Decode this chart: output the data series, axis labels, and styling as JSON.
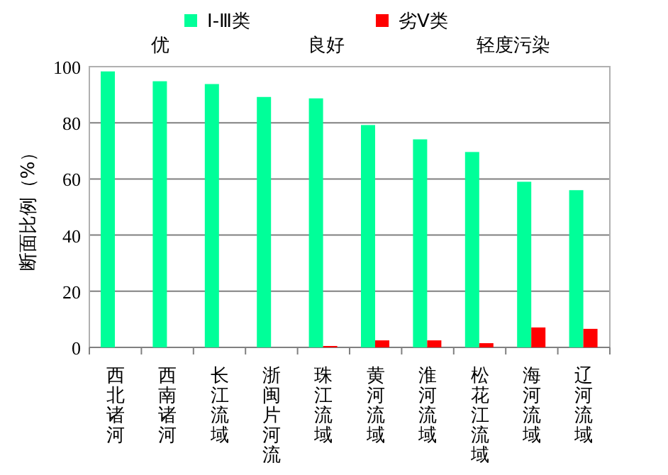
{
  "chart_data": {
    "type": "bar",
    "ylabel": "断面比例（%）",
    "categories": [
      "西北诸河",
      "西南诸河",
      "长江流域",
      "浙闽片河流",
      "珠江流域",
      "黄河流域",
      "淮河流域",
      "松花江流域",
      "海河流域",
      "辽河流域"
    ],
    "series": [
      {
        "name": "Ⅰ-Ⅲ类",
        "color": "#00ff99",
        "values": [
          98.3,
          94.8,
          93.8,
          89.2,
          88.7,
          79.2,
          74.1,
          69.6,
          59.0,
          56.0
        ]
      },
      {
        "name": "劣Ⅴ类",
        "color": "#ff0000",
        "values": [
          0,
          0,
          0,
          0,
          0.5,
          2.5,
          2.5,
          1.5,
          7.1,
          6.6
        ]
      }
    ],
    "ylim": [
      0,
      100
    ],
    "yticks": [
      0,
      20,
      40,
      60,
      80,
      100
    ],
    "grid": "y",
    "legend": "top",
    "annotations": [
      "优",
      "良好",
      "轻度污染"
    ]
  }
}
